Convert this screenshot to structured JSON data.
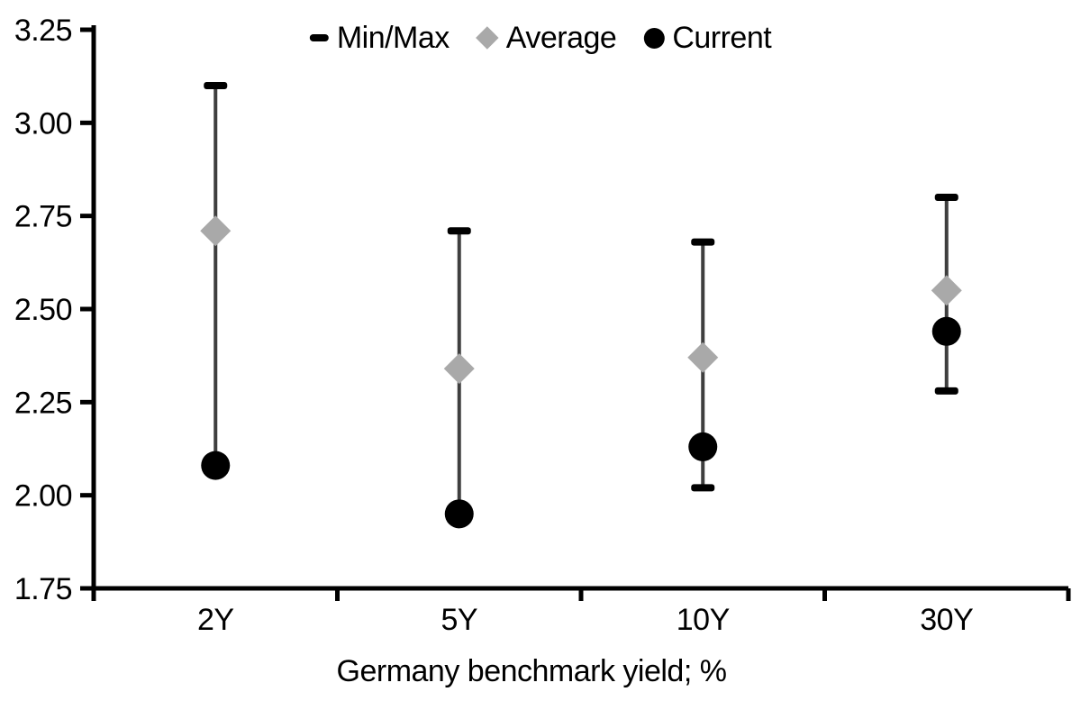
{
  "figure": {
    "background": "#ffffff"
  },
  "legend": {
    "items": [
      {
        "label": "Min/Max",
        "symbol": "dash-icon",
        "color": "#000000"
      },
      {
        "label": "Average",
        "symbol": "diamond-icon",
        "color": "#a9a9a9"
      },
      {
        "label": "Current",
        "symbol": "circle-icon",
        "color": "#000000"
      }
    ]
  },
  "chart_data": {
    "type": "scatter",
    "variant": "min-max-range-dot",
    "title": "",
    "xlabel": "Germany benchmark yield; %",
    "ylabel": "",
    "categories": [
      "2Y",
      "5Y",
      "10Y",
      "30Y"
    ],
    "series": [
      {
        "name": "Min/Max",
        "role": "range",
        "min": [
          2.08,
          1.95,
          2.02,
          2.28
        ],
        "max": [
          3.1,
          2.71,
          2.68,
          2.8
        ]
      },
      {
        "name": "Average",
        "role": "diamond-marker",
        "values": [
          2.71,
          2.34,
          2.37,
          2.55
        ]
      },
      {
        "name": "Current",
        "role": "dot-marker",
        "values": [
          2.08,
          1.95,
          2.13,
          2.44
        ]
      }
    ],
    "ylim": [
      1.75,
      3.25
    ],
    "ytick_step": 0.25,
    "ytick_labels": [
      "3.25",
      "3.00",
      "2.75",
      "2.50",
      "2.25",
      "2.00",
      "1.75"
    ],
    "grid": false,
    "legend_position": "top-center",
    "colors": {
      "axis": "#000000",
      "tick_text": "#000000",
      "range_line": "#3f3f3f",
      "range_cap": "#000000",
      "average_marker": "#a9a9a9",
      "current_marker": "#000000",
      "background": "#ffffff"
    }
  }
}
